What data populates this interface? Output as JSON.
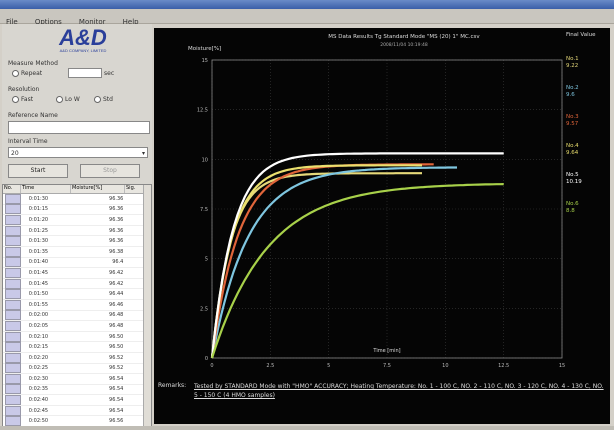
{
  "window": {
    "menus": [
      "File",
      "Options",
      "Monitor",
      "Help"
    ]
  },
  "left_panel": {
    "logo": "A&D",
    "logo_sub": "A&D COMPANY, LIMITED",
    "measure_section": "Measure Method",
    "measure_option": "Repeat",
    "measure_value": "",
    "measure_unit": "sec",
    "unit_section": "Resolution",
    "unit_options": [
      "Fast",
      "Lo W",
      "Std"
    ],
    "sample_name_label": "Reference Name",
    "sample_name_value": "",
    "interval_label": "Interval Time",
    "interval_value": "20",
    "start_label": "Start",
    "stop_label": "Stop"
  },
  "table": {
    "headers": [
      "No.",
      "Time",
      "Moisture[%]",
      "Sig."
    ],
    "rows": [
      {
        "time": "0:01:30",
        "value": "96.36"
      },
      {
        "time": "0:01:15",
        "value": "96.36"
      },
      {
        "time": "0:01:20",
        "value": "96.36"
      },
      {
        "time": "0:01:25",
        "value": "96.36"
      },
      {
        "time": "0:01:30",
        "value": "96.36"
      },
      {
        "time": "0:01:35",
        "value": "96.38"
      },
      {
        "time": "0:01:40",
        "value": "96.4"
      },
      {
        "time": "0:01:45",
        "value": "96.42"
      },
      {
        "time": "0:01:45",
        "value": "96.42"
      },
      {
        "time": "0:01:50",
        "value": "96.44"
      },
      {
        "time": "0:01:55",
        "value": "96.46"
      },
      {
        "time": "0:02:00",
        "value": "96.48"
      },
      {
        "time": "0:02:05",
        "value": "96.48"
      },
      {
        "time": "0:02:10",
        "value": "96.50"
      },
      {
        "time": "0:02:15",
        "value": "96.50"
      },
      {
        "time": "0:02:20",
        "value": "96.52"
      },
      {
        "time": "0:02:25",
        "value": "96.52"
      },
      {
        "time": "0:02:30",
        "value": "96.54"
      },
      {
        "time": "0:02:35",
        "value": "96.54"
      },
      {
        "time": "0:02:40",
        "value": "96.54"
      },
      {
        "time": "0:02:45",
        "value": "96.54"
      },
      {
        "time": "0:02:50",
        "value": "96.56"
      }
    ]
  },
  "chart_data": {
    "type": "line",
    "title": "MS Data Results Tg Standard Mode \"MS (20) 1\" MC.csv",
    "subtitle": "2008/11/04 10:19:48",
    "xlabel": "Time [min]",
    "ylabel": "Moisture[%]",
    "xlim": [
      0,
      15
    ],
    "ylim": [
      0,
      15
    ],
    "xticks": [
      "0",
      "2.5",
      "5",
      "7.5",
      "10",
      "12.5",
      "15"
    ],
    "yticks": [
      "0",
      "2.5",
      "5",
      "7.5",
      "10",
      "12.5",
      "15"
    ],
    "legend_title": "Final Value",
    "series": [
      {
        "name": "No.1",
        "final": "9.22",
        "color": "#e6d97a",
        "k": 1.25,
        "plateau": 9.3,
        "xend": 9.0
      },
      {
        "name": "No.2",
        "final": "9.6",
        "color": "#7fc6e0",
        "k": 0.65,
        "plateau": 9.6,
        "xend": 10.5
      },
      {
        "name": "No.3",
        "final": "9.57",
        "color": "#e0653a",
        "k": 0.9,
        "plateau": 9.75,
        "xend": 9.5
      },
      {
        "name": "No.4",
        "final": "9.64",
        "color": "#eadf6e",
        "k": 1.15,
        "plateau": 9.7,
        "xend": 9.0
      },
      {
        "name": "No.5",
        "final": "10.19",
        "color": "#ffffff",
        "k": 1.1,
        "plateau": 10.3,
        "xend": 12.5
      },
      {
        "name": "No.6",
        "final": "8.8",
        "color": "#a8d14a",
        "k": 0.42,
        "plateau": 8.8,
        "xend": 12.5
      }
    ]
  },
  "remarks": {
    "label": "Remarks:",
    "text": "Tested by STANDARD Mode with \"HMO\" ACCURACY; Heating Temperature: No. 1 - 100 C, NO. 2 - 110 C, NO. 3 - 120 C, NO. 4 - 130 C, NO. 5 - 150 C (4 HMO samples)"
  }
}
